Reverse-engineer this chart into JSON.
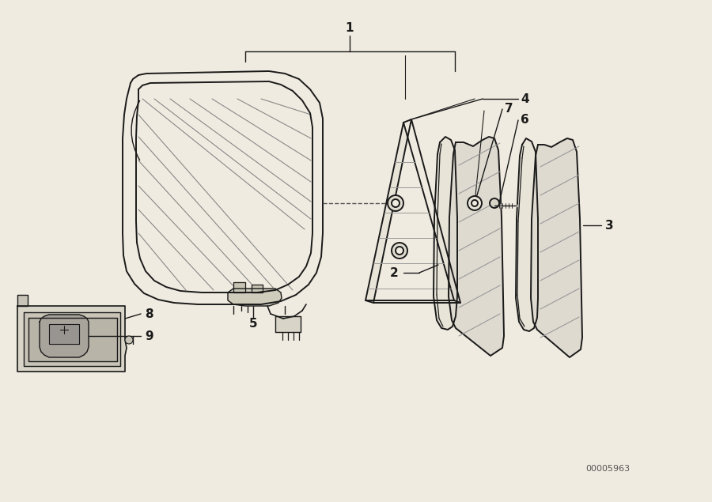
{
  "background_color": "#f0ebe0",
  "line_color": "#1a1a1a",
  "text_color": "#1a1a1a",
  "diagram_code": "00005963",
  "fill_light": "#e8e4d8",
  "fill_mid": "#d8d4c8",
  "shade_color": "#aaaaaa"
}
